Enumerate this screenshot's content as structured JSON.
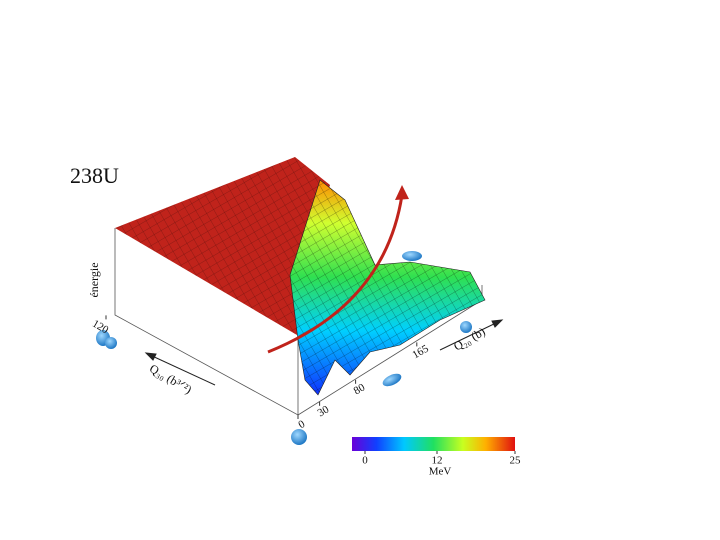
{
  "title": "238U",
  "z_axis": {
    "label": "énergie"
  },
  "q20_axis": {
    "label": "Q₂₀ (b)",
    "ticks": [
      0,
      30,
      80,
      165
    ]
  },
  "q30_axis": {
    "label": "Q₃₀ (b³ᐟ²)",
    "ticks": [
      120
    ]
  },
  "colorbar": {
    "range": [
      0,
      25
    ],
    "ticks": [
      0,
      12,
      25
    ],
    "unit": "MeV"
  }
}
